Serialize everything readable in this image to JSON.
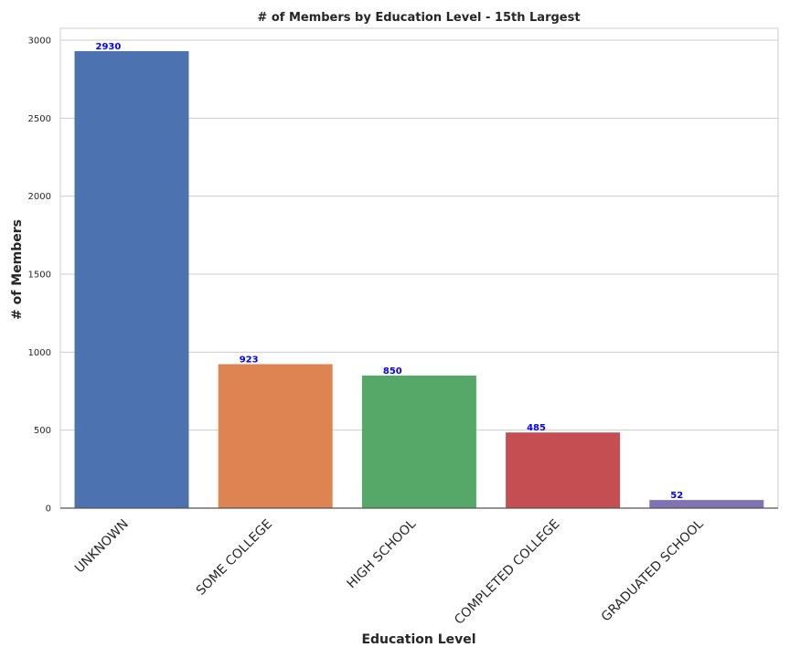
{
  "chart_data": {
    "type": "bar",
    "title": "# of Members by Education Level - 15th Largest",
    "xlabel": "Education Level",
    "ylabel": "# of Members",
    "categories": [
      "UNKNOWN",
      "SOME COLLEGE",
      "HIGH SCHOOL",
      "COMPLETED COLLEGE",
      "GRADUATED SCHOOL"
    ],
    "values": [
      2930,
      923,
      850,
      485,
      52
    ],
    "data_labels": [
      "2930",
      "923",
      "850",
      "485",
      "52"
    ],
    "colors": [
      "#4c72b0",
      "#dd8452",
      "#55a868",
      "#c44e52",
      "#8172b3"
    ],
    "label_color": "#0000ff",
    "ylim": [
      0,
      3000
    ],
    "yticks": [
      0,
      500,
      1000,
      1500,
      2000,
      2500,
      3000
    ],
    "ytick_labels": [
      "0",
      "500",
      "1000",
      "1500",
      "2000",
      "2500",
      "3000"
    ],
    "grid": true,
    "grid_axis": "y",
    "legend": false
  }
}
